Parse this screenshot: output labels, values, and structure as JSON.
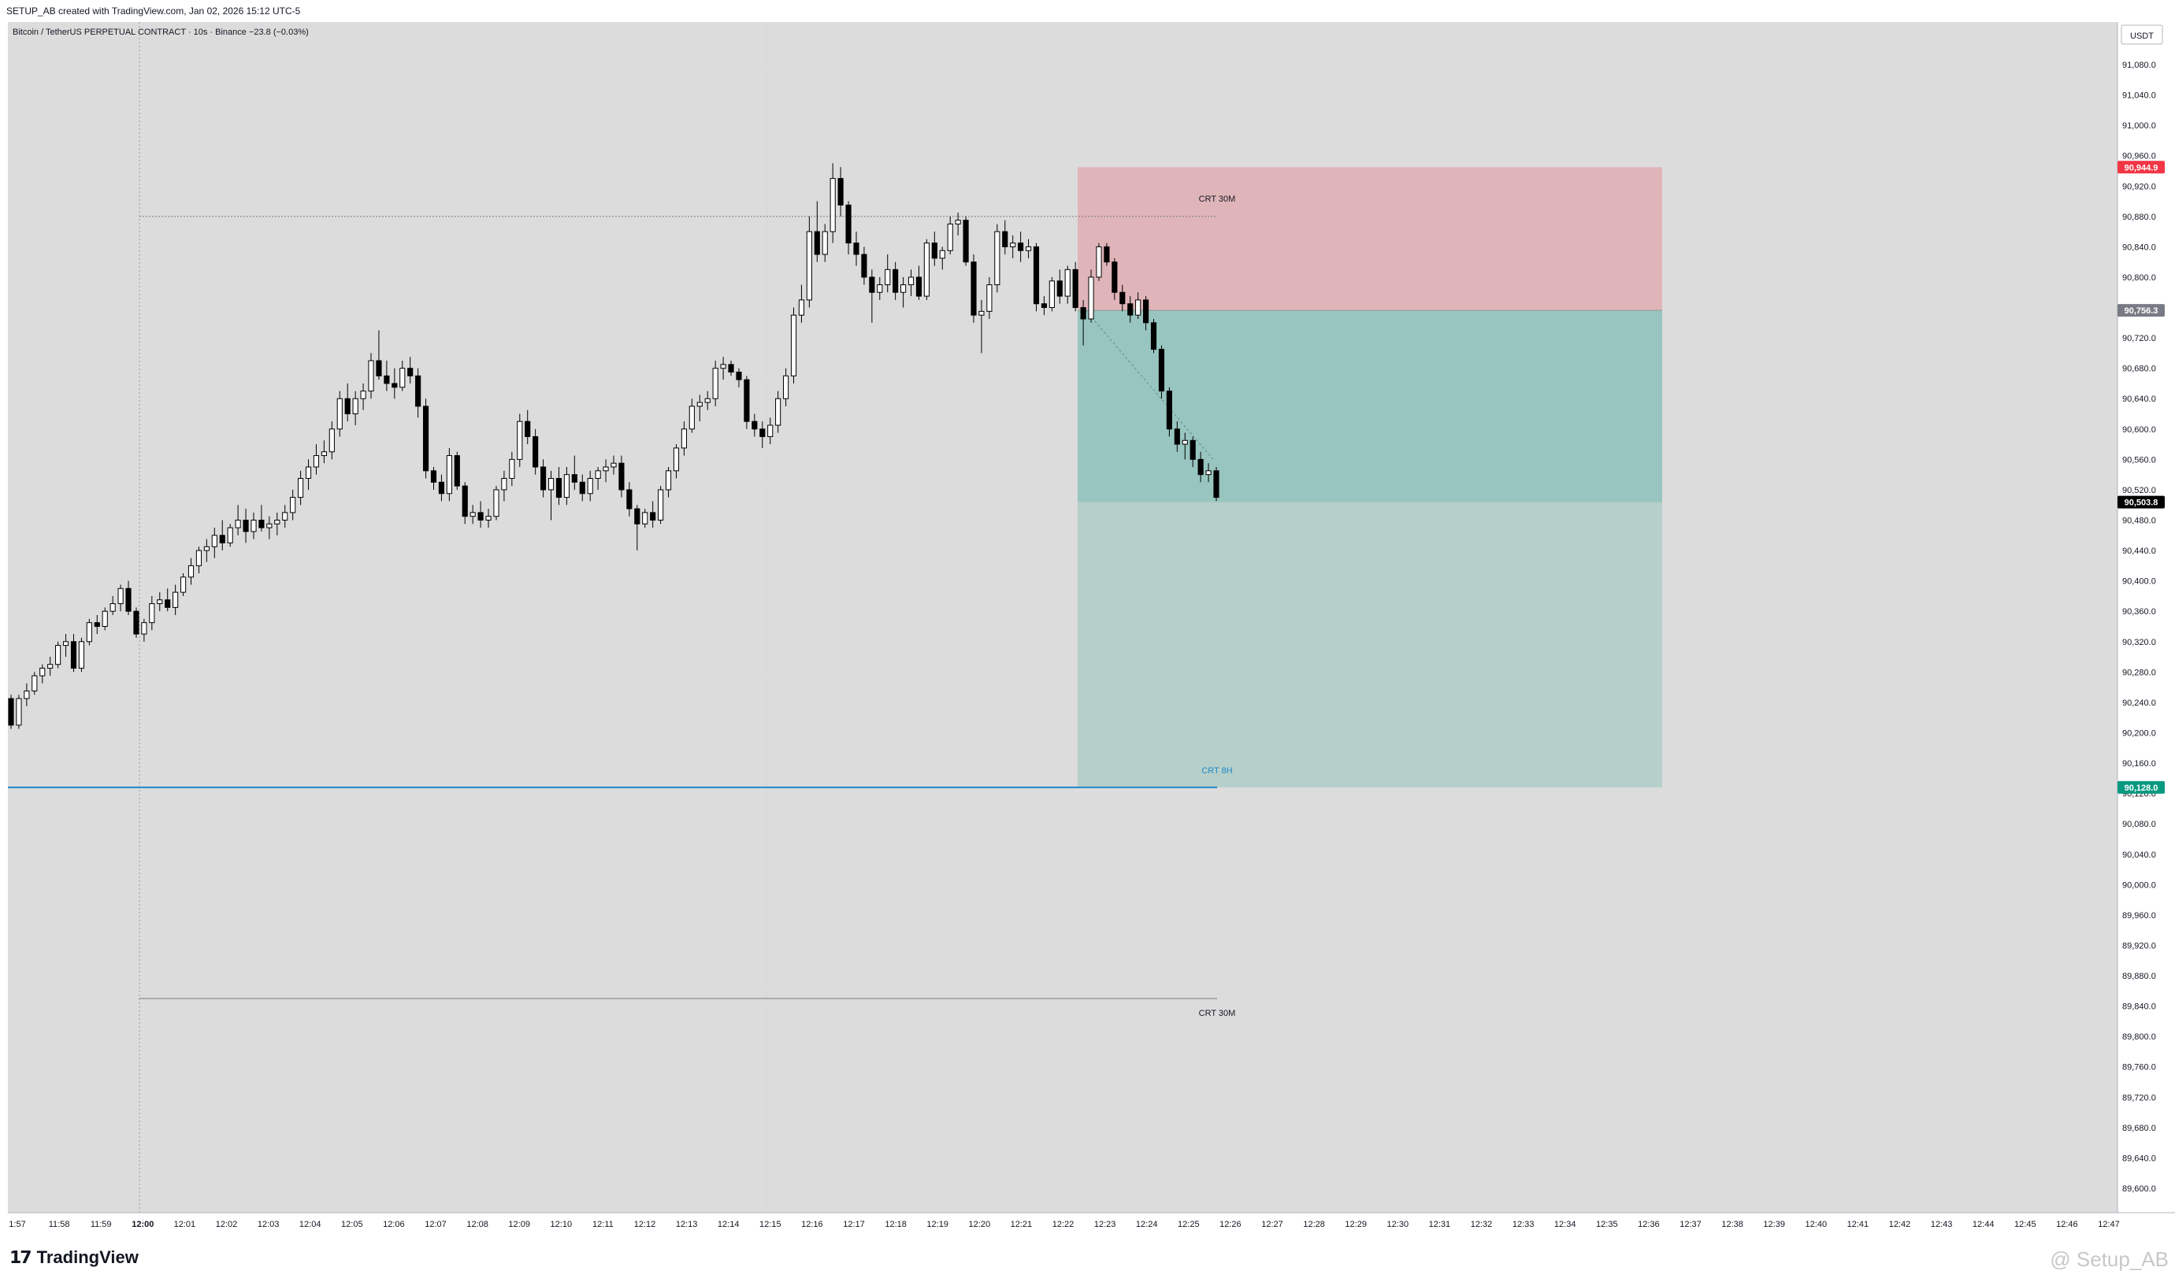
{
  "header": {
    "created": "SETUP_AB created with TradingView.com, Jan 02, 2026 15:12 UTC-5",
    "legend": "Bitcoin / TetherUS PERPETUAL CONTRACT · 10s · Binance  −23.8 (−0.03%)",
    "currency": "USDT"
  },
  "footer": {
    "brand": "TradingView",
    "watermark": "@ Setup_AB"
  },
  "chart_data": {
    "type": "candlestick",
    "ylim": [
      89560,
      91120
    ],
    "yticks": [
      91080,
      91040,
      91000,
      90960,
      90920,
      90880,
      90840,
      90800,
      90760,
      90720,
      90680,
      90640,
      90600,
      90560,
      90520,
      90480,
      90440,
      90400,
      90360,
      90320,
      90280,
      90240,
      90200,
      90160,
      90120,
      90080,
      90040,
      90000,
      89960,
      89920,
      89880,
      89840,
      89800,
      89760,
      89720,
      89680,
      89640,
      89600
    ],
    "ytick_labels": [
      "91,080.0",
      "91,040.0",
      "91,000.0",
      "90,960.0",
      "90,920.0",
      "90,880.0",
      "90,840.0",
      "90,800.0",
      "90,760.0",
      "90,720.0",
      "90,680.0",
      "90,640.0",
      "90,600.0",
      "90,560.0",
      "90,520.0",
      "90,480.0",
      "90,440.0",
      "90,400.0",
      "90,360.0",
      "90,320.0",
      "90,280.0",
      "90,240.0",
      "90,200.0",
      "90,160.0",
      "90,120.0",
      "90,080.0",
      "90,040.0",
      "90,000.0",
      "89,960.0",
      "89,920.0",
      "89,880.0",
      "89,840.0",
      "89,800.0",
      "89,760.0",
      "89,720.0",
      "89,680.0",
      "89,640.0",
      "89,600.0"
    ],
    "xticks": [
      "1:57",
      "11:58",
      "11:59",
      "12:00",
      "12:01",
      "12:02",
      "12:03",
      "12:04",
      "12:05",
      "12:06",
      "12:07",
      "12:08",
      "12:09",
      "12:10",
      "12:11",
      "12:12",
      "12:13",
      "12:14",
      "12:15",
      "12:16",
      "12:17",
      "12:18",
      "12:19",
      "12:20",
      "12:21",
      "12:22",
      "12:23",
      "12:24",
      "12:25",
      "12:26",
      "12:27",
      "12:28",
      "12:29",
      "12:30",
      "12:31",
      "12:32",
      "12:33",
      "12:34",
      "12:35",
      "12:36",
      "12:37",
      "12:38",
      "12:39",
      "12:40",
      "12:41",
      "12:42",
      "12:43",
      "12:44",
      "12:45",
      "12:46",
      "12:47"
    ],
    "bold_xtick": "12:00",
    "candles": [
      [
        90245,
        90250,
        90205,
        90210
      ],
      [
        90210,
        90250,
        90205,
        90245
      ],
      [
        90245,
        90265,
        90235,
        90255
      ],
      [
        90255,
        90280,
        90250,
        90275
      ],
      [
        90275,
        90290,
        90265,
        90285
      ],
      [
        90285,
        90300,
        90275,
        90290
      ],
      [
        90290,
        90320,
        90285,
        90315
      ],
      [
        90315,
        90330,
        90300,
        90320
      ],
      [
        90320,
        90330,
        90280,
        90285
      ],
      [
        90285,
        90325,
        90280,
        90320
      ],
      [
        90320,
        90350,
        90315,
        90345
      ],
      [
        90345,
        90355,
        90330,
        90340
      ],
      [
        90340,
        90365,
        90335,
        90360
      ],
      [
        90360,
        90380,
        90355,
        90370
      ],
      [
        90370,
        90395,
        90360,
        90390
      ],
      [
        90390,
        90400,
        90355,
        90360
      ],
      [
        90360,
        90365,
        90325,
        90330
      ],
      [
        90330,
        90350,
        90320,
        90345
      ],
      [
        90345,
        90380,
        90335,
        90370
      ],
      [
        90370,
        90385,
        90360,
        90375
      ],
      [
        90375,
        90390,
        90360,
        90365
      ],
      [
        90365,
        90395,
        90355,
        90385
      ],
      [
        90385,
        90410,
        90380,
        90405
      ],
      [
        90405,
        90430,
        90395,
        90420
      ],
      [
        90420,
        90445,
        90410,
        90440
      ],
      [
        90440,
        90455,
        90425,
        90445
      ],
      [
        90445,
        90470,
        90430,
        90460
      ],
      [
        90460,
        90480,
        90440,
        90450
      ],
      [
        90450,
        90475,
        90445,
        90470
      ],
      [
        90470,
        90500,
        90460,
        90480
      ],
      [
        90480,
        90495,
        90450,
        90465
      ],
      [
        90465,
        90490,
        90455,
        90480
      ],
      [
        90480,
        90500,
        90465,
        90470
      ],
      [
        90470,
        90485,
        90455,
        90475
      ],
      [
        90475,
        90490,
        90460,
        90480
      ],
      [
        90480,
        90500,
        90470,
        90490
      ],
      [
        90490,
        90520,
        90480,
        90510
      ],
      [
        90510,
        90545,
        90500,
        90535
      ],
      [
        90535,
        90560,
        90520,
        90550
      ],
      [
        90550,
        90580,
        90540,
        90565
      ],
      [
        90565,
        90585,
        90555,
        90570
      ],
      [
        90570,
        90610,
        90560,
        90600
      ],
      [
        90600,
        90650,
        90590,
        90640
      ],
      [
        90640,
        90660,
        90610,
        90620
      ],
      [
        90620,
        90650,
        90605,
        90640
      ],
      [
        90640,
        90660,
        90625,
        90650
      ],
      [
        90650,
        90700,
        90640,
        90690
      ],
      [
        90690,
        90730,
        90665,
        90670
      ],
      [
        90670,
        90690,
        90650,
        90660
      ],
      [
        90660,
        90680,
        90640,
        90655
      ],
      [
        90655,
        90690,
        90650,
        90680
      ],
      [
        90680,
        90695,
        90660,
        90670
      ],
      [
        90670,
        90680,
        90615,
        90630
      ],
      [
        90630,
        90640,
        90535,
        90545
      ],
      [
        90545,
        90550,
        90520,
        90530
      ],
      [
        90530,
        90540,
        90505,
        90515
      ],
      [
        90515,
        90575,
        90505,
        90565
      ],
      [
        90565,
        90570,
        90520,
        90525
      ],
      [
        90525,
        90530,
        90475,
        90485
      ],
      [
        90485,
        90500,
        90475,
        90490
      ],
      [
        90490,
        90505,
        90470,
        90480
      ],
      [
        90480,
        90495,
        90470,
        90485
      ],
      [
        90485,
        90525,
        90480,
        90520
      ],
      [
        90520,
        90545,
        90505,
        90535
      ],
      [
        90535,
        90570,
        90525,
        90560
      ],
      [
        90560,
        90620,
        90550,
        90610
      ],
      [
        90610,
        90625,
        90580,
        90590
      ],
      [
        90590,
        90600,
        90540,
        90550
      ],
      [
        90550,
        90560,
        90510,
        90520
      ],
      [
        90520,
        90545,
        90480,
        90535
      ],
      [
        90535,
        90550,
        90500,
        90510
      ],
      [
        90510,
        90550,
        90500,
        90540
      ],
      [
        90540,
        90565,
        90520,
        90530
      ],
      [
        90530,
        90540,
        90505,
        90515
      ],
      [
        90515,
        90545,
        90505,
        90535
      ],
      [
        90535,
        90550,
        90520,
        90545
      ],
      [
        90545,
        90560,
        90530,
        90550
      ],
      [
        90550,
        90565,
        90540,
        90555
      ],
      [
        90555,
        90565,
        90510,
        90520
      ],
      [
        90520,
        90530,
        90485,
        90495
      ],
      [
        90495,
        90500,
        90440,
        90475
      ],
      [
        90475,
        90495,
        90470,
        90490
      ],
      [
        90490,
        90505,
        90470,
        90480
      ],
      [
        90480,
        90525,
        90475,
        90520
      ],
      [
        90520,
        90550,
        90510,
        90545
      ],
      [
        90545,
        90580,
        90535,
        90575
      ],
      [
        90575,
        90610,
        90565,
        90600
      ],
      [
        90600,
        90640,
        90595,
        90630
      ],
      [
        90630,
        90645,
        90610,
        90635
      ],
      [
        90635,
        90650,
        90625,
        90640
      ],
      [
        90640,
        90690,
        90630,
        90680
      ],
      [
        90680,
        90695,
        90665,
        90685
      ],
      [
        90685,
        90690,
        90670,
        90675
      ],
      [
        90675,
        90680,
        90655,
        90665
      ],
      [
        90665,
        90670,
        90600,
        90610
      ],
      [
        90610,
        90620,
        90590,
        90600
      ],
      [
        90600,
        90610,
        90575,
        90590
      ],
      [
        90590,
        90615,
        90580,
        90605
      ],
      [
        90605,
        90650,
        90595,
        90640
      ],
      [
        90640,
        90680,
        90630,
        90670
      ],
      [
        90670,
        90760,
        90660,
        90750
      ],
      [
        90750,
        90790,
        90740,
        90770
      ],
      [
        90770,
        90880,
        90760,
        90860
      ],
      [
        90860,
        90900,
        90820,
        90830
      ],
      [
        90830,
        90870,
        90820,
        90860
      ],
      [
        90860,
        90950,
        90845,
        90930
      ],
      [
        90930,
        90945,
        90880,
        90895
      ],
      [
        90895,
        90900,
        90830,
        90845
      ],
      [
        90845,
        90860,
        90815,
        90830
      ],
      [
        90830,
        90840,
        90790,
        90800
      ],
      [
        90800,
        90810,
        90740,
        90780
      ],
      [
        90780,
        90800,
        90770,
        90790
      ],
      [
        90790,
        90830,
        90780,
        90810
      ],
      [
        90810,
        90820,
        90770,
        90780
      ],
      [
        90780,
        90800,
        90760,
        90790
      ],
      [
        90790,
        90810,
        90775,
        90800
      ],
      [
        90800,
        90815,
        90770,
        90775
      ],
      [
        90775,
        90850,
        90770,
        90845
      ],
      [
        90845,
        90860,
        90815,
        90825
      ],
      [
        90825,
        90840,
        90810,
        90835
      ],
      [
        90835,
        90880,
        90830,
        90870
      ],
      [
        90870,
        90885,
        90855,
        90875
      ],
      [
        90875,
        90880,
        90815,
        90820
      ],
      [
        90820,
        90830,
        90740,
        90750
      ],
      [
        90750,
        90770,
        90700,
        90755
      ],
      [
        90755,
        90800,
        90745,
        90790
      ],
      [
        90790,
        90870,
        90780,
        90860
      ],
      [
        90860,
        90875,
        90830,
        90840
      ],
      [
        90840,
        90855,
        90825,
        90845
      ],
      [
        90845,
        90860,
        90820,
        90835
      ],
      [
        90835,
        90850,
        90825,
        90840
      ],
      [
        90840,
        90845,
        90755,
        90765
      ],
      [
        90765,
        90775,
        90750,
        90760
      ],
      [
        90760,
        90800,
        90755,
        90795
      ],
      [
        90795,
        90810,
        90765,
        90775
      ],
      [
        90775,
        90815,
        90765,
        90810
      ],
      [
        90810,
        90820,
        90755,
        90760
      ],
      [
        90760,
        90770,
        90710,
        90745
      ],
      [
        90745,
        90810,
        90740,
        90800
      ],
      [
        90800,
        90845,
        90795,
        90840
      ],
      [
        90840,
        90845,
        90815,
        90820
      ],
      [
        90820,
        90825,
        90770,
        90780
      ],
      [
        90780,
        90790,
        90755,
        90765
      ],
      [
        90765,
        90775,
        90740,
        90750
      ],
      [
        90750,
        90780,
        90745,
        90770
      ],
      [
        90770,
        90775,
        90730,
        90740
      ],
      [
        90740,
        90745,
        90700,
        90705
      ],
      [
        90705,
        90710,
        90640,
        90650
      ],
      [
        90650,
        90655,
        90590,
        90600
      ],
      [
        90600,
        90610,
        90570,
        90580
      ],
      [
        90580,
        90595,
        90560,
        90585
      ],
      [
        90585,
        90590,
        90550,
        90560
      ],
      [
        90560,
        90570,
        90530,
        90540
      ],
      [
        90540,
        90555,
        90530,
        90545
      ],
      [
        90545,
        90550,
        90505,
        90510
      ]
    ],
    "current_price": 90503.8,
    "current_price_label": "90,503.8",
    "long_position": {
      "stop_price": 90944.9,
      "stop_label": "90,944.9",
      "entry_price": 90756.3,
      "entry_label": "90,756.3",
      "target_price": 90128.0,
      "target_label": "90,128.0"
    },
    "levels": [
      {
        "price": 90880,
        "label": "CRT 30M"
      },
      {
        "price": 89850,
        "label": "CRT 30M"
      },
      {
        "price": 90128,
        "label": "CRT 8H"
      }
    ],
    "colors": {
      "background": "#dcdcdc",
      "up_candle": "#ffffff",
      "down_candle": "#000000",
      "stop_zone": "#e0b5b9",
      "profit_zone_open": "#98c5bf",
      "profit_zone_rest": "#b6cfca",
      "target_line": "#1e88c8",
      "stop_badge": "#f23645",
      "entry_badge": "#787b86",
      "target_badge": "#089981",
      "current_badge": "#000000"
    }
  }
}
